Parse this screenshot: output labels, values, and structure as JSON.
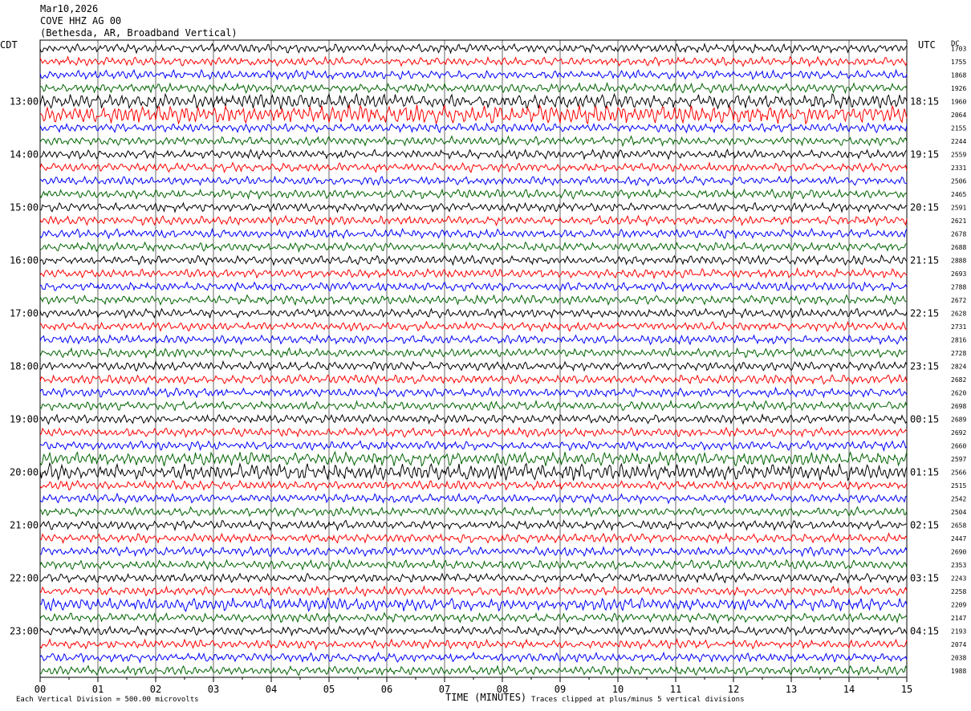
{
  "header": {
    "date": "Mar10,2026",
    "station": "COVE HHZ AG 00",
    "location": "(Bethesda, AR, Broadband Vertical)"
  },
  "left_tz": "CDT",
  "right_tz": "UTC",
  "dc_label": "DC",
  "footer": {
    "scale": "Each Vertical Division =  500.00 microvolts",
    "clip": "Traces clipped at plus/minus 5 vertical divisions"
  },
  "chart_data": {
    "type": "line",
    "title": "COVE HHZ AG 00",
    "xlabel": "TIME (MINUTES)",
    "xlim": [
      0,
      15
    ],
    "x_ticks": [
      "00",
      "01",
      "02",
      "03",
      "04",
      "05",
      "06",
      "07",
      "08",
      "09",
      "10",
      "11",
      "12",
      "13",
      "14",
      "15"
    ],
    "left_hour_labels": [
      "13:00",
      "14:00",
      "15:00",
      "16:00",
      "17:00",
      "18:00",
      "19:00",
      "20:00",
      "21:00",
      "22:00",
      "23:00"
    ],
    "right_hour_labels": [
      "18:15",
      "19:15",
      "20:15",
      "21:15",
      "22:15",
      "23:15",
      "00:15",
      "01:15",
      "02:15",
      "03:15",
      "04:15"
    ],
    "trace_colors": [
      "#000000",
      "#ff0000",
      "#0000ff",
      "#006400"
    ],
    "dc_offsets": [
      "1703",
      "1755",
      "1868",
      "1926",
      "1960",
      "2064",
      "2155",
      "2244",
      "2559",
      "2331",
      "2506",
      "2465",
      "2591",
      "2621",
      "2678",
      "2688",
      "2888",
      "2693",
      "2788",
      "2672",
      "2628",
      "2731",
      "2816",
      "2728",
      "2824",
      "2682",
      "2620",
      "2698",
      "2689",
      "2692",
      "2660",
      "2597",
      "2566",
      "2515",
      "2542",
      "2504",
      "2658",
      "2447",
      "2690",
      "2353",
      "2243",
      "2258",
      "2209",
      "2147",
      "2193",
      "2074",
      "2038",
      "1988"
    ],
    "trace_count": 48
  }
}
